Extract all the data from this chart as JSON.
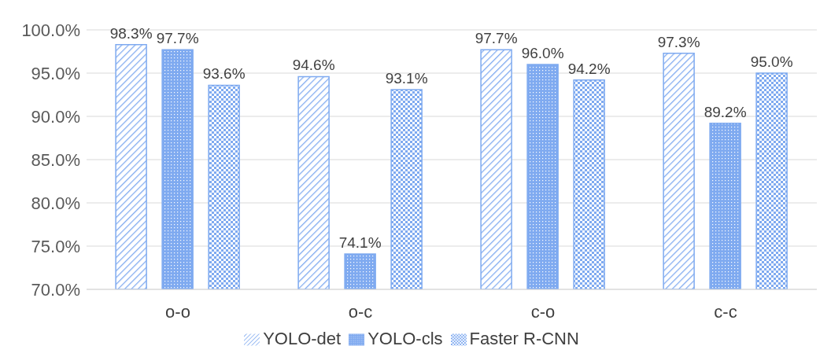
{
  "chart_data": {
    "type": "bar",
    "categories": [
      "o-o",
      "o-c",
      "c-o",
      "c-c"
    ],
    "series": [
      {
        "name": "YOLO-det",
        "color": "#7faaf0",
        "values": [
          98.3,
          94.6,
          97.7,
          97.3
        ],
        "value_labels": [
          "98.3%",
          "94.6%",
          "97.7%",
          "97.3%"
        ]
      },
      {
        "name": "YOLO-cls",
        "color": "#7faaf0",
        "values": [
          97.7,
          74.1,
          96.0,
          89.2
        ],
        "value_labels": [
          "97.7%",
          "74.1%",
          "96.0%",
          "89.2%"
        ]
      },
      {
        "name": "Faster R-CNN",
        "color": "#7faaf0",
        "values": [
          93.6,
          93.1,
          94.2,
          95.0
        ],
        "value_labels": [
          "93.6%",
          "93.1%",
          "94.2%",
          "95.0%"
        ]
      }
    ],
    "ylim": [
      70,
      100
    ],
    "yticks": [
      {
        "value": 70,
        "label": "70.0%"
      },
      {
        "value": 75,
        "label": "75.0%"
      },
      {
        "value": 80,
        "label": "80.0%"
      },
      {
        "value": 85,
        "label": "85.0%"
      },
      {
        "value": 90,
        "label": "90.0%"
      },
      {
        "value": 95,
        "label": "95.0%"
      },
      {
        "value": 100,
        "label": "100.0%"
      }
    ],
    "grid": "y",
    "legend": "bottom"
  }
}
